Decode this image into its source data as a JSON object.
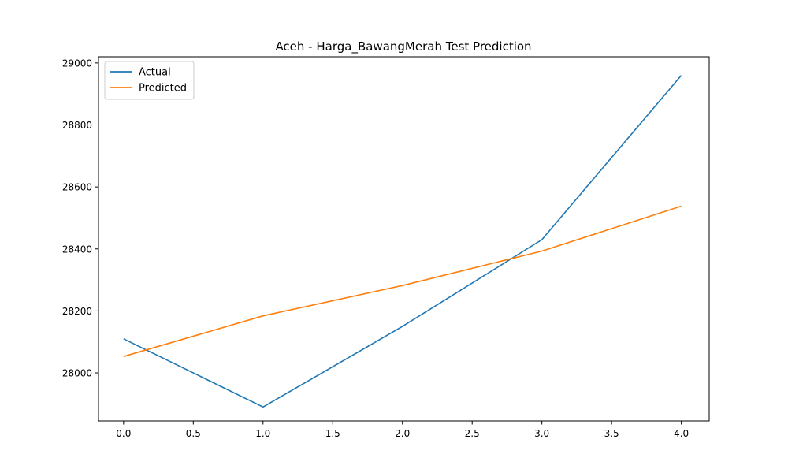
{
  "chart_data": {
    "type": "line",
    "title": "Aceh - Harga_BawangMerah Test Prediction",
    "xlabel": "",
    "ylabel": "",
    "xlim": [
      -0.18,
      4.2
    ],
    "ylim": [
      27845,
      29020
    ],
    "x_ticks": [
      0.0,
      0.5,
      1.0,
      1.5,
      2.0,
      2.5,
      3.0,
      3.5,
      4.0
    ],
    "x_tick_labels": [
      "0.0",
      "0.5",
      "1.0",
      "1.5",
      "2.0",
      "2.5",
      "3.0",
      "3.5",
      "4.0"
    ],
    "y_ticks": [
      28000,
      28200,
      28400,
      28600,
      28800,
      29000
    ],
    "y_tick_labels": [
      "28000",
      "28200",
      "28400",
      "28600",
      "28800",
      "29000"
    ],
    "grid": false,
    "legend_position": "top-left",
    "x": [
      0,
      1,
      2,
      3,
      4
    ],
    "series": [
      {
        "name": "Actual",
        "color": "#1f77b4",
        "values": [
          28110,
          27890,
          28150,
          28430,
          28960
        ]
      },
      {
        "name": "Predicted",
        "color": "#ff7f0e",
        "values": [
          28053,
          28184,
          28282,
          28393,
          28538
        ]
      }
    ]
  }
}
